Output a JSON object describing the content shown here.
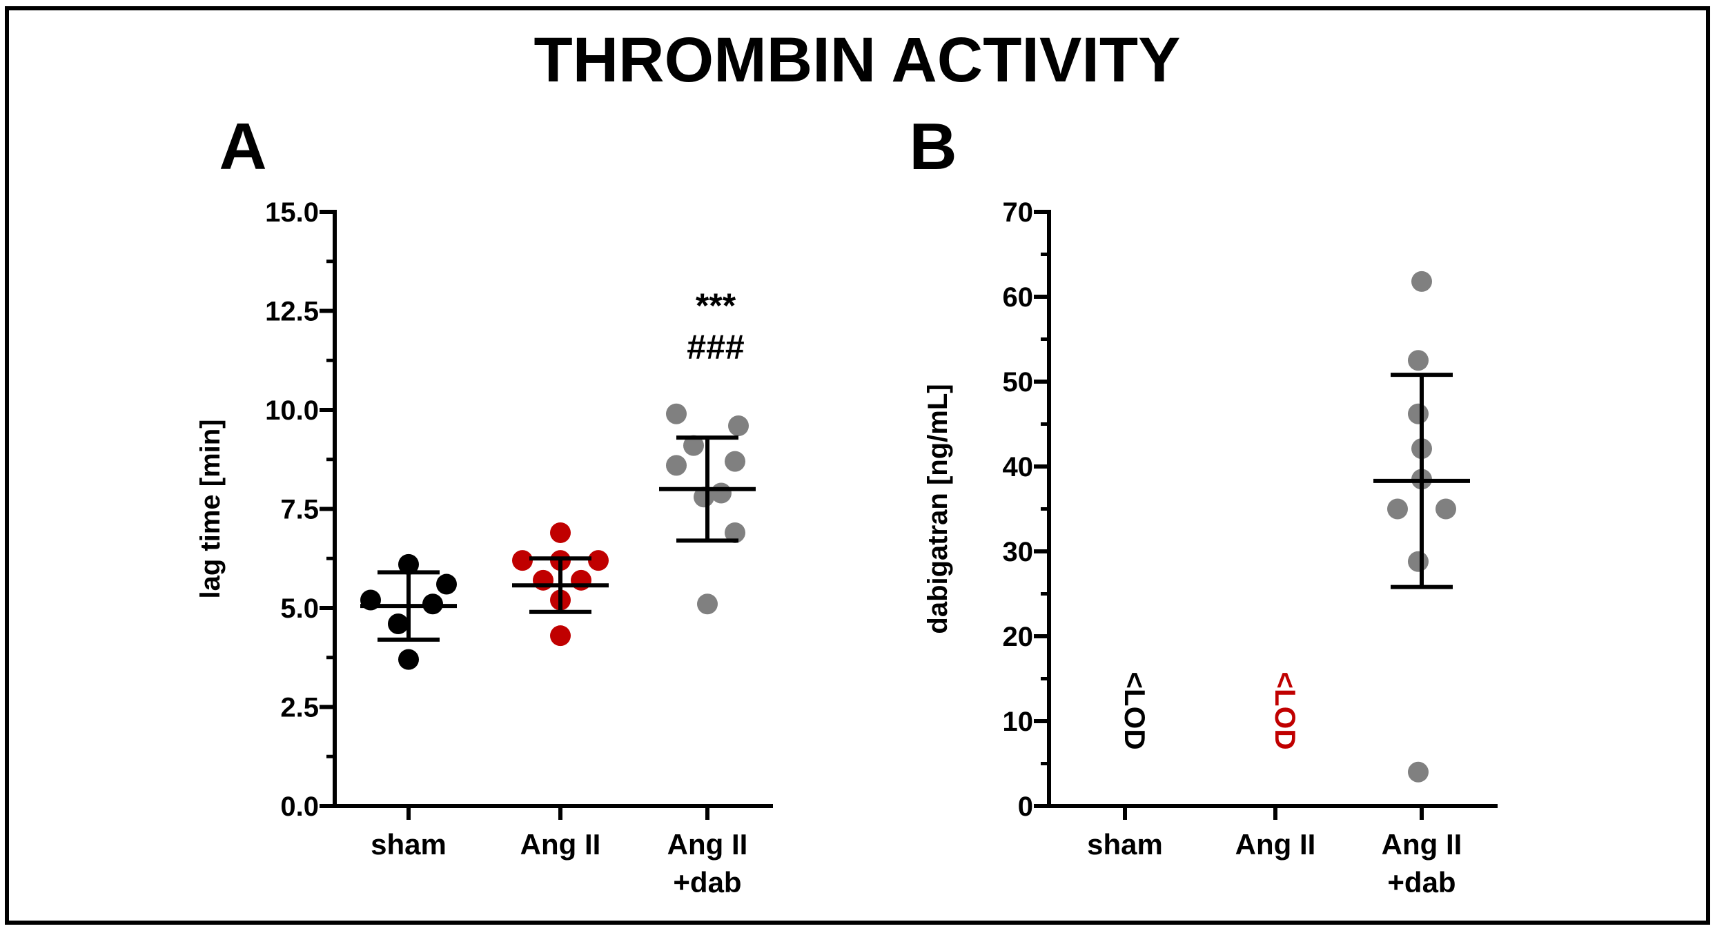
{
  "figure": {
    "title": "THROMBIN ACTIVITY"
  },
  "colors": {
    "sham": "#000000",
    "angii": "#c00000",
    "dab": "#808080",
    "axis": "#000000"
  },
  "chart_data": [
    {
      "panel": "A",
      "type": "scatter",
      "ylabel": "lag time [min]",
      "ylim": [
        0,
        15
      ],
      "yticks": [
        "0.0",
        "2.5",
        "5.0",
        "7.5",
        "10.0",
        "12.5",
        "15.0"
      ],
      "groups": [
        {
          "label": "sham",
          "label_lines": [
            "sham"
          ],
          "color_key": "sham",
          "points": [
            5.2,
            6.1,
            5.6,
            5.1,
            4.6,
            3.7
          ],
          "mean": 5.05,
          "error_low": 4.2,
          "error_high": 5.9
        },
        {
          "label": "Ang II",
          "label_lines": [
            "Ang II"
          ],
          "color_key": "angii",
          "points": [
            6.9,
            6.2,
            6.2,
            6.2,
            5.7,
            5.7,
            5.2,
            4.3
          ],
          "mean": 5.57,
          "error_low": 4.9,
          "error_high": 6.25
        },
        {
          "label": "Ang II +dab",
          "label_lines": [
            "Ang II",
            "+dab"
          ],
          "color_key": "dab",
          "points": [
            9.9,
            9.6,
            9.1,
            8.7,
            8.6,
            7.9,
            7.8,
            6.9,
            5.1
          ],
          "mean": 8.0,
          "error_low": 6.7,
          "error_high": 9.3,
          "annotations": [
            "***",
            "###"
          ]
        }
      ]
    },
    {
      "panel": "B",
      "type": "scatter",
      "ylabel": "dabigatran [ng/mL]",
      "ylim": [
        0,
        70
      ],
      "yticks": [
        "0",
        "10",
        "20",
        "30",
        "40",
        "50",
        "60",
        "70"
      ],
      "groups": [
        {
          "label": "sham",
          "label_lines": [
            "sham"
          ],
          "color_key": "sham",
          "points": [],
          "note": "<LOD"
        },
        {
          "label": "Ang II",
          "label_lines": [
            "Ang II"
          ],
          "color_key": "angii",
          "points": [],
          "note": "<LOD"
        },
        {
          "label": "Ang II +dab",
          "label_lines": [
            "Ang II",
            "+dab"
          ],
          "color_key": "dab",
          "points": [
            61.8,
            52.5,
            46.2,
            42.1,
            38.5,
            35.0,
            35.0,
            28.8,
            4.0
          ],
          "mean": 38.3,
          "error_low": 25.8,
          "error_high": 50.8
        }
      ]
    }
  ]
}
